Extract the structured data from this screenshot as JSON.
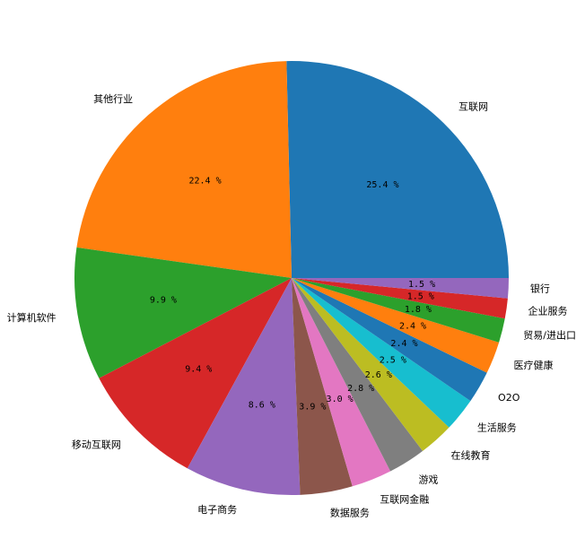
{
  "chart_data": {
    "type": "pie",
    "categories": [
      "互联网",
      "其他行业",
      "计算机软件",
      "移动互联网",
      "电子商务",
      "数据服务",
      "互联网金融",
      "游戏",
      "在线教育",
      "生活服务",
      "O2O",
      "医疗健康",
      "贸易/进出口",
      "企业服务",
      "银行"
    ],
    "values": [
      25.4,
      22.4,
      9.9,
      9.4,
      8.6,
      3.9,
      3.0,
      2.8,
      2.6,
      2.5,
      2.4,
      2.4,
      1.8,
      1.5,
      1.5
    ],
    "value_labels": [
      "25.4 %",
      "22.4 %",
      "9.9 %",
      "9.4 %",
      "8.6 %",
      "3.9 %",
      "3.0 %",
      "2.8 %",
      "2.6 %",
      "2.5 %",
      "2.4 %",
      "2.4 %",
      "1.8 %",
      "1.5 %",
      "1.5 %"
    ],
    "colors": [
      "#1f77b4",
      "#ff7f0e",
      "#2ca02c",
      "#d62728",
      "#9467bd",
      "#8c564b",
      "#e377c2",
      "#7f7f7f",
      "#bcbd22",
      "#17becf",
      "#1f77b4",
      "#ff7f0e",
      "#2ca02c",
      "#d62728",
      "#9467bd"
    ]
  }
}
